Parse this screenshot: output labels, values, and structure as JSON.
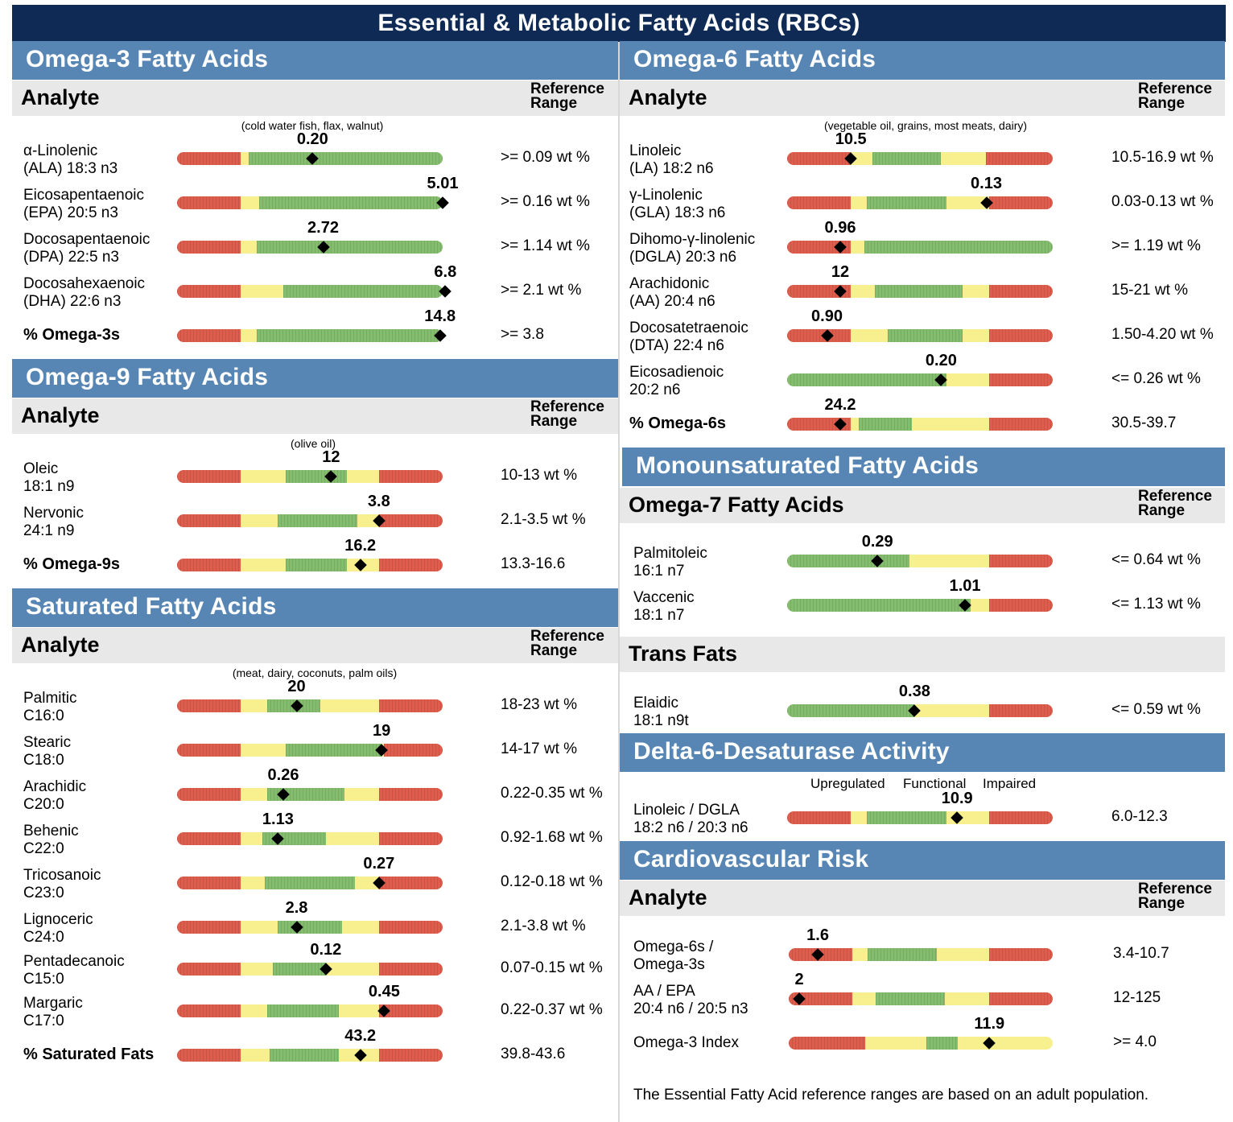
{
  "title": "Essential & Metabolic Fatty Acids (RBCs)",
  "colors": {
    "red": "#de5d4d",
    "yellow": "#f8f08e",
    "green": "#84bd6d",
    "title_bg": "#0f2b55",
    "section_bg": "#5786b4"
  },
  "analyte_label": "Analyte",
  "reference_label_1": "Reference",
  "reference_label_2": "Range",
  "omega3": {
    "title": "Omega-3 Fatty Acids",
    "note": "(cold water fish, flax, walnut)",
    "rows": [
      {
        "name1": "α-Linolenic",
        "name2": "(ALA) 18:3 n3",
        "value": "0.20",
        "range": ">= 0.09 wt %",
        "pos": 0.51,
        "segments": [
          [
            "r",
            0.24
          ],
          [
            "y",
            0.03
          ],
          [
            "g",
            0.73
          ]
        ]
      },
      {
        "name1": "Eicosapentaenoic",
        "name2": "(EPA) 20:5 n3",
        "value": "5.01",
        "range": ">= 0.16 wt %",
        "pos": 1.0,
        "segments": [
          [
            "r",
            0.24
          ],
          [
            "y",
            0.07
          ],
          [
            "g",
            0.69
          ]
        ]
      },
      {
        "name1": "Docosapentaenoic",
        "name2": "(DPA) 22:5 n3",
        "value": "2.72",
        "range": ">= 1.14 wt %",
        "pos": 0.55,
        "segments": [
          [
            "r",
            0.24
          ],
          [
            "y",
            0.06
          ],
          [
            "g",
            0.7
          ]
        ]
      },
      {
        "name1": "Docosahexaenoic",
        "name2": "(DHA) 22:6 n3",
        "value": "6.8",
        "range": ">= 2.1 wt %",
        "pos": 1.01,
        "segments": [
          [
            "r",
            0.24
          ],
          [
            "y",
            0.16
          ],
          [
            "g",
            0.6
          ]
        ]
      },
      {
        "name1": "% Omega-3s",
        "name2": "",
        "value": "14.8",
        "range": ">= 3.8",
        "pos": 0.99,
        "bold": true,
        "segments": [
          [
            "r",
            0.24
          ],
          [
            "y",
            0.06
          ],
          [
            "g",
            0.7
          ]
        ]
      }
    ]
  },
  "omega9": {
    "title": "Omega-9 Fatty Acids",
    "note": "(olive oil)",
    "rows": [
      {
        "name1": "Oleic",
        "name2": "18:1 n9",
        "value": "12",
        "range": "10-13 wt %",
        "pos": 0.58,
        "segments": [
          [
            "r",
            0.24
          ],
          [
            "y",
            0.17
          ],
          [
            "g",
            0.23
          ],
          [
            "y",
            0.12
          ],
          [
            "r",
            0.24
          ]
        ]
      },
      {
        "name1": "Nervonic",
        "name2": "24:1 n9",
        "value": "3.8",
        "range": "2.1-3.5 wt %",
        "pos": 0.76,
        "segments": [
          [
            "r",
            0.24
          ],
          [
            "y",
            0.14
          ],
          [
            "g",
            0.3
          ],
          [
            "y",
            0.08
          ],
          [
            "r",
            0.24
          ]
        ]
      },
      {
        "name1": "% Omega-9s",
        "name2": "",
        "value": "16.2",
        "range": "13.3-16.6",
        "pos": 0.69,
        "bold": true,
        "segments": [
          [
            "r",
            0.24
          ],
          [
            "y",
            0.17
          ],
          [
            "g",
            0.23
          ],
          [
            "y",
            0.12
          ],
          [
            "r",
            0.24
          ]
        ]
      }
    ]
  },
  "saturated": {
    "title": "Saturated Fatty Acids",
    "note": "(meat, dairy, coconuts, palm oils)",
    "rows": [
      {
        "name1": "Palmitic",
        "name2": "C16:0",
        "value": "20",
        "range": "18-23 wt %",
        "pos": 0.45,
        "segments": [
          [
            "r",
            0.24
          ],
          [
            "y",
            0.1
          ],
          [
            "g",
            0.2
          ],
          [
            "y",
            0.22
          ],
          [
            "r",
            0.24
          ]
        ]
      },
      {
        "name1": "Stearic",
        "name2": "C18:0",
        "value": "19",
        "range": "14-17 wt %",
        "pos": 0.77,
        "segments": [
          [
            "r",
            0.24
          ],
          [
            "y",
            0.17
          ],
          [
            "g",
            0.36
          ],
          [
            "y",
            0.01
          ],
          [
            "r",
            0.22
          ]
        ]
      },
      {
        "name1": "Arachidic",
        "name2": "C20:0",
        "value": "0.26",
        "range": "0.22-0.35 wt %",
        "pos": 0.4,
        "segments": [
          [
            "r",
            0.24
          ],
          [
            "y",
            0.1
          ],
          [
            "g",
            0.29
          ],
          [
            "y",
            0.13
          ],
          [
            "r",
            0.24
          ]
        ]
      },
      {
        "name1": "Behenic",
        "name2": "C22:0",
        "value": "1.13",
        "range": "0.92-1.68 wt %",
        "pos": 0.38,
        "segments": [
          [
            "r",
            0.24
          ],
          [
            "y",
            0.08
          ],
          [
            "g",
            0.24
          ],
          [
            "y",
            0.2
          ],
          [
            "r",
            0.24
          ]
        ]
      },
      {
        "name1": "Tricosanoic",
        "name2": "C23:0",
        "value": "0.27",
        "range": "0.12-0.18 wt %",
        "pos": 0.76,
        "segments": [
          [
            "r",
            0.24
          ],
          [
            "y",
            0.09
          ],
          [
            "g",
            0.34
          ],
          [
            "y",
            0.09
          ],
          [
            "r",
            0.24
          ]
        ]
      },
      {
        "name1": "Lignoceric",
        "name2": "C24:0",
        "value": "2.8",
        "range": "2.1-3.8 wt %",
        "pos": 0.45,
        "segments": [
          [
            "r",
            0.24
          ],
          [
            "y",
            0.14
          ],
          [
            "g",
            0.24
          ],
          [
            "y",
            0.14
          ],
          [
            "r",
            0.24
          ]
        ]
      },
      {
        "name1": "Pentadecanoic",
        "name2": "C15:0",
        "value": "0.12",
        "range": "0.07-0.15 wt %",
        "pos": 0.56,
        "segments": [
          [
            "r",
            0.24
          ],
          [
            "y",
            0.12
          ],
          [
            "g",
            0.2
          ],
          [
            "y",
            0.2
          ],
          [
            "r",
            0.24
          ]
        ]
      },
      {
        "name1": "Margaric",
        "name2": "C17:0",
        "value": "0.45",
        "range": "0.22-0.37 wt %",
        "pos": 0.78,
        "segments": [
          [
            "r",
            0.24
          ],
          [
            "y",
            0.1
          ],
          [
            "g",
            0.27
          ],
          [
            "y",
            0.15
          ],
          [
            "r",
            0.24
          ]
        ]
      },
      {
        "name1": "% Saturated Fats",
        "name2": "",
        "value": "43.2",
        "range": "39.8-43.6",
        "pos": 0.69,
        "bold": true,
        "segments": [
          [
            "r",
            0.24
          ],
          [
            "y",
            0.11
          ],
          [
            "g",
            0.26
          ],
          [
            "y",
            0.15
          ],
          [
            "r",
            0.24
          ]
        ]
      }
    ]
  },
  "omega6": {
    "title": "Omega-6 Fatty Acids",
    "note": "(vegetable oil, grains, most meats, dairy)",
    "rows": [
      {
        "name1": "Linoleic",
        "name2": "(LA) 18:2 n6",
        "value": "10.5",
        "range": "10.5-16.9 wt %",
        "pos": 0.24,
        "segments": [
          [
            "r",
            0.24
          ],
          [
            "y",
            0.08
          ],
          [
            "g",
            0.26
          ],
          [
            "y",
            0.17
          ],
          [
            "r",
            0.25
          ]
        ]
      },
      {
        "name1": "γ-Linolenic",
        "name2": "(GLA) 18:3 n6",
        "value": "0.13",
        "range": "0.03-0.13 wt %",
        "pos": 0.75,
        "segments": [
          [
            "r",
            0.24
          ],
          [
            "y",
            0.06
          ],
          [
            "g",
            0.3
          ],
          [
            "y",
            0.16
          ],
          [
            "r",
            0.24
          ]
        ]
      },
      {
        "name1": "Dihomo-γ-linolenic",
        "name2": "(DGLA) 20:3 n6",
        "value": "0.96",
        "range": ">= 1.19 wt %",
        "pos": 0.2,
        "segments": [
          [
            "r",
            0.24
          ],
          [
            "y",
            0.05
          ],
          [
            "g",
            0.71
          ]
        ]
      },
      {
        "name1": "Arachidonic",
        "name2": "(AA) 20:4 n6",
        "value": "12",
        "range": "15-21 wt %",
        "pos": 0.2,
        "segments": [
          [
            "r",
            0.24
          ],
          [
            "y",
            0.09
          ],
          [
            "g",
            0.33
          ],
          [
            "y",
            0.1
          ],
          [
            "r",
            0.24
          ]
        ]
      },
      {
        "name1": "Docosatetraenoic",
        "name2": "(DTA) 22:4 n6",
        "value": "0.90",
        "range": "1.50-4.20 wt %",
        "pos": 0.15,
        "segments": [
          [
            "r",
            0.24
          ],
          [
            "y",
            0.14
          ],
          [
            "g",
            0.28
          ],
          [
            "y",
            0.1
          ],
          [
            "r",
            0.24
          ]
        ]
      },
      {
        "name1": "Eicosadienoic",
        "name2": "20:2 n6",
        "value": "0.20",
        "range": "<= 0.26 wt %",
        "pos": 0.58,
        "segments": [
          [
            "g",
            0.6
          ],
          [
            "y",
            0.16
          ],
          [
            "r",
            0.24
          ]
        ]
      },
      {
        "name1": "% Omega-6s",
        "name2": "",
        "value": "24.2",
        "range": "30.5-39.7",
        "pos": 0.2,
        "bold": true,
        "segments": [
          [
            "r",
            0.24
          ],
          [
            "y",
            0.03
          ],
          [
            "g",
            0.2
          ],
          [
            "y",
            0.29
          ],
          [
            "r",
            0.24
          ]
        ]
      }
    ]
  },
  "monounsaturated": {
    "title": "Monounsaturated Fatty Acids",
    "omega7_title": "Omega-7 Fatty Acids",
    "rows": [
      {
        "name1": "Palmitoleic",
        "name2": "16:1 n7",
        "value": "0.29",
        "range": "<= 0.64 wt %",
        "pos": 0.34,
        "segments": [
          [
            "g",
            0.46
          ],
          [
            "y",
            0.3
          ],
          [
            "r",
            0.24
          ]
        ]
      },
      {
        "name1": "Vaccenic",
        "name2": "18:1 n7",
        "value": "1.01",
        "range": "<= 1.13 wt %",
        "pos": 0.67,
        "segments": [
          [
            "g",
            0.69
          ],
          [
            "y",
            0.07
          ],
          [
            "r",
            0.24
          ]
        ]
      }
    ],
    "trans_title": "Trans Fats",
    "trans_rows": [
      {
        "name1": "Elaidic",
        "name2": "18:1 n9t",
        "value": "0.38",
        "range": "<= 0.59 wt %",
        "pos": 0.48,
        "segments": [
          [
            "g",
            0.48
          ],
          [
            "y",
            0.28
          ],
          [
            "r",
            0.24
          ]
        ]
      }
    ]
  },
  "delta6": {
    "title": "Delta-6-Desaturase Activity",
    "label_upregulated": "Upregulated",
    "label_functional": "Functional",
    "label_impaired": "Impaired",
    "rows": [
      {
        "name1": "Linoleic / DGLA",
        "name2": "18:2 n6 / 20:3 n6",
        "value": "10.9",
        "range": "6.0-12.3",
        "pos": 0.64,
        "segments": [
          [
            "r",
            0.24
          ],
          [
            "y",
            0.06
          ],
          [
            "g",
            0.3
          ],
          [
            "y",
            0.16
          ],
          [
            "r",
            0.24
          ]
        ]
      }
    ]
  },
  "cardio": {
    "title": "Cardiovascular Risk",
    "rows": [
      {
        "name1": "Omega-6s /",
        "name2": "Omega-3s",
        "value": "1.6",
        "range": "3.4-10.7",
        "pos": 0.11,
        "segments": [
          [
            "r",
            0.24
          ],
          [
            "y",
            0.06
          ],
          [
            "g",
            0.26
          ],
          [
            "y",
            0.2
          ],
          [
            "r",
            0.24
          ]
        ]
      },
      {
        "name1": "AA / EPA",
        "name2": "20:4 n6 / 20:5 n3",
        "value": "2",
        "range": "12-125",
        "pos": 0.04,
        "segments": [
          [
            "r",
            0.24
          ],
          [
            "y",
            0.09
          ],
          [
            "g",
            0.26
          ],
          [
            "y",
            0.17
          ],
          [
            "r",
            0.24
          ]
        ]
      },
      {
        "name1": "Omega-3 Index",
        "name2": "",
        "value": "11.9",
        "range": ">= 4.0",
        "pos": 0.76,
        "segments": [
          [
            "r",
            0.29
          ],
          [
            "y",
            0.23
          ],
          [
            "g",
            0.12
          ],
          [
            "y",
            0.36
          ]
        ]
      }
    ]
  },
  "footer": "The Essential Fatty Acid reference ranges are based on an adult population."
}
